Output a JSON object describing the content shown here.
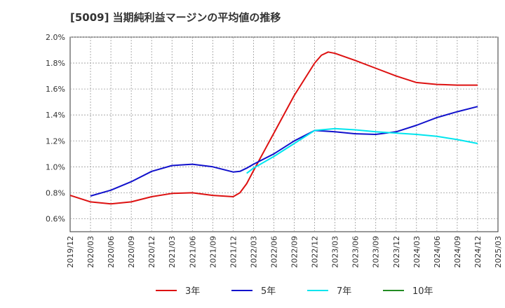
{
  "chart_data": {
    "type": "line",
    "title": "[5009]  当期純利益マージンの平均値の推移",
    "x_ticks": [
      "2019/12",
      "2020/03",
      "2020/06",
      "2020/09",
      "2020/12",
      "2021/03",
      "2021/06",
      "2021/09",
      "2021/12",
      "2022/03",
      "2022/06",
      "2022/09",
      "2022/12",
      "2023/03",
      "2023/06",
      "2023/09",
      "2023/12",
      "2024/03",
      "2024/06",
      "2024/09",
      "2024/12",
      "2025/03"
    ],
    "y_ticks": [
      "2.0%",
      "1.8%",
      "1.6%",
      "1.4%",
      "1.2%",
      "1.0%",
      "0.8%",
      "0.6%"
    ],
    "ylim": [
      0.5,
      2.0
    ],
    "grid": true,
    "legend_position": "bottom",
    "series": [
      {
        "name": "3年",
        "color": "#dd1111",
        "x": [
          "2019/12",
          "2020/03",
          "2020/06",
          "2020/09",
          "2020/12",
          "2021/03",
          "2021/06",
          "2021/09",
          "2021/12",
          "2022/01",
          "2022/02",
          "2022/03",
          "2022/06",
          "2022/09",
          "2022/12",
          "2023/01",
          "2023/02",
          "2023/03",
          "2023/06",
          "2023/09",
          "2023/12",
          "2024/03",
          "2024/06",
          "2024/09",
          "2024/12"
        ],
        "values": [
          0.78,
          0.73,
          0.715,
          0.73,
          0.77,
          0.795,
          0.8,
          0.78,
          0.77,
          0.8,
          0.87,
          0.97,
          1.26,
          1.55,
          1.8,
          1.86,
          1.885,
          1.875,
          1.82,
          1.76,
          1.7,
          1.65,
          1.635,
          1.63,
          1.63
        ]
      },
      {
        "name": "5年",
        "color": "#1111cc",
        "x": [
          "2020/03",
          "2020/06",
          "2020/09",
          "2020/12",
          "2021/03",
          "2021/06",
          "2021/09",
          "2021/12",
          "2022/01",
          "2022/02",
          "2022/03",
          "2022/06",
          "2022/09",
          "2022/12",
          "2023/03",
          "2023/06",
          "2023/09",
          "2023/12",
          "2024/03",
          "2024/06",
          "2024/09",
          "2024/12"
        ],
        "values": [
          0.775,
          0.82,
          0.885,
          0.965,
          1.01,
          1.02,
          1.0,
          0.96,
          0.965,
          0.99,
          1.02,
          1.1,
          1.2,
          1.28,
          1.27,
          1.255,
          1.25,
          1.27,
          1.32,
          1.38,
          1.425,
          1.465
        ]
      },
      {
        "name": "7年",
        "color": "#00e5ee",
        "x": [
          "2022/02",
          "2022/03",
          "2022/06",
          "2022/09",
          "2022/12",
          "2023/03",
          "2023/06",
          "2023/09",
          "2023/12",
          "2024/03",
          "2024/06",
          "2024/09",
          "2024/12"
        ],
        "values": [
          0.95,
          0.99,
          1.08,
          1.18,
          1.28,
          1.295,
          1.285,
          1.27,
          1.26,
          1.25,
          1.235,
          1.21,
          1.18
        ]
      },
      {
        "name": "10年",
        "color": "#228b22",
        "x": [],
        "values": []
      }
    ]
  }
}
